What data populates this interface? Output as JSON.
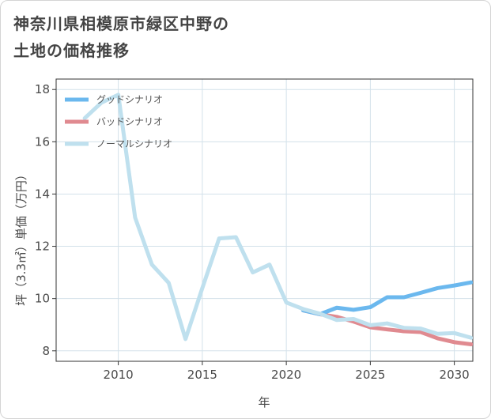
{
  "page": {
    "title_lines": [
      "神奈川県相模原市緑区中野の",
      "土地の価格推移"
    ]
  },
  "chart_data": {
    "type": "line",
    "xlabel": "年",
    "ylabel": "坪（3.3㎡）単価（万円）",
    "xlim": [
      2006.3,
      2031.1
    ],
    "ylim": [
      7.6,
      18.4
    ],
    "xticks": [
      2010,
      2015,
      2020,
      2025,
      2030
    ],
    "yticks": [
      8,
      10,
      12,
      14,
      16,
      18
    ],
    "grid": true,
    "legend_position": "top-left",
    "series": [
      {
        "name": "グッドシナリオ",
        "color": "#6bb8ee",
        "x": [
          2021,
          2022,
          2023,
          2024,
          2025,
          2026,
          2027,
          2028,
          2029,
          2030,
          2031
        ],
        "values": [
          9.55,
          9.4,
          9.65,
          9.57,
          9.67,
          10.05,
          10.05,
          10.22,
          10.4,
          10.5,
          10.62
        ]
      },
      {
        "name": "バッドシナリオ",
        "color": "#e08a90",
        "x": [
          2021,
          2022,
          2023,
          2024,
          2025,
          2026,
          2027,
          2028,
          2029,
          2030,
          2031
        ],
        "values": [
          9.55,
          9.4,
          9.3,
          9.12,
          8.9,
          8.82,
          8.75,
          8.72,
          8.48,
          8.33,
          8.25
        ]
      },
      {
        "name": "ノーマルシナリオ",
        "color": "#bfe0ee",
        "x": [
          2008,
          2009,
          2010,
          2011,
          2012,
          2013,
          2014,
          2015,
          2016,
          2017,
          2018,
          2019,
          2020,
          2021,
          2022,
          2023,
          2024,
          2025,
          2026,
          2027,
          2028,
          2029,
          2030,
          2031
        ],
        "values": [
          16.9,
          17.5,
          17.8,
          13.1,
          11.3,
          10.6,
          8.45,
          10.4,
          12.3,
          12.35,
          11.0,
          11.3,
          9.85,
          9.6,
          9.42,
          9.18,
          9.22,
          8.98,
          9.05,
          8.88,
          8.85,
          8.65,
          8.68,
          8.5
        ]
      }
    ]
  }
}
